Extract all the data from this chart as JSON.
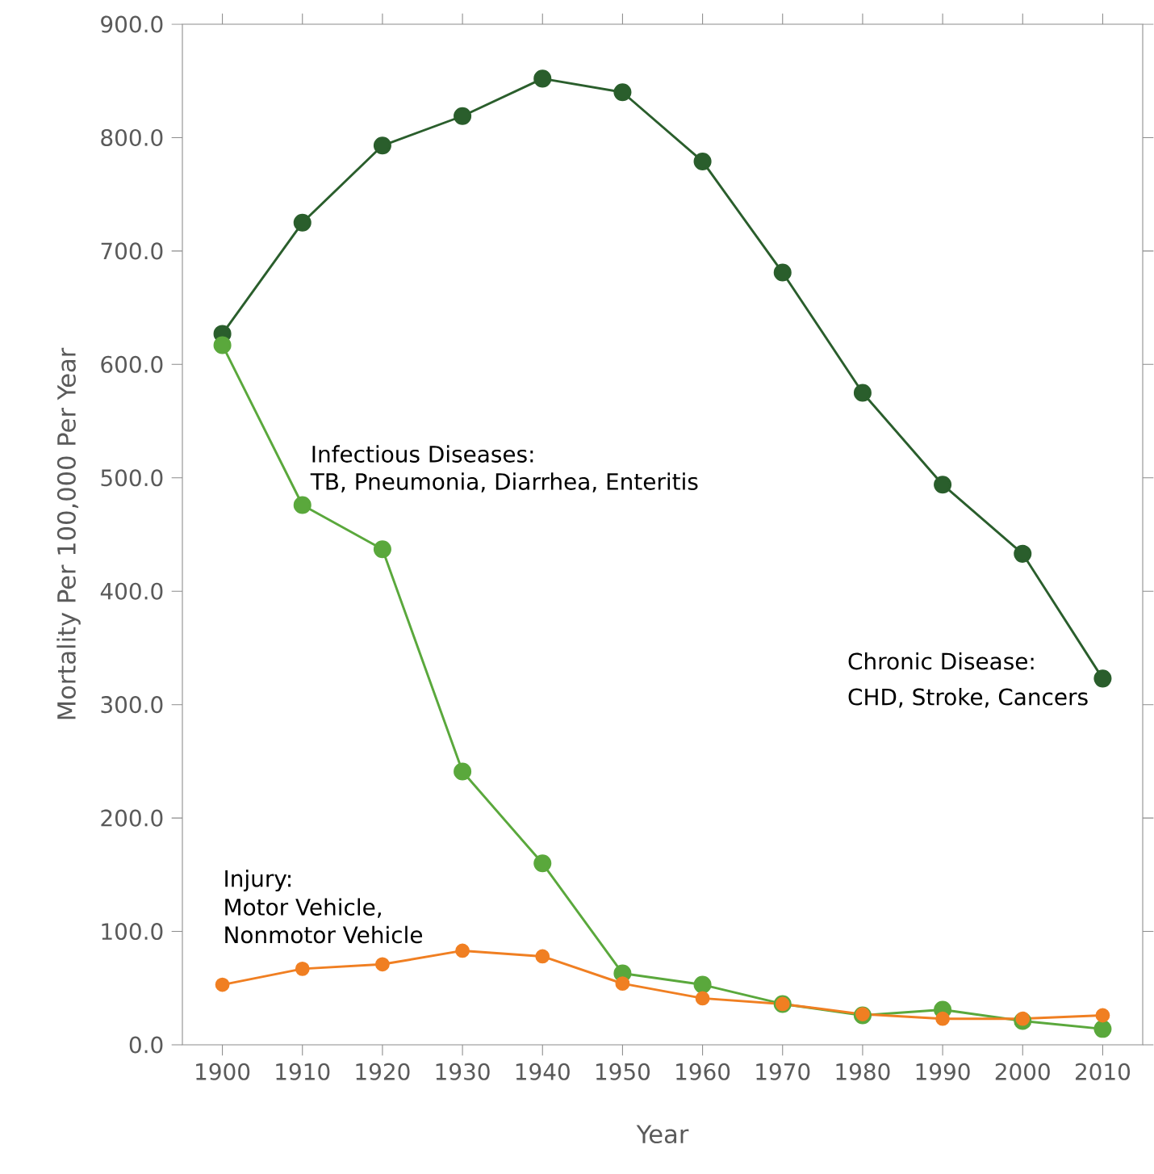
{
  "chart_data": {
    "type": "line",
    "xlabel": "Year",
    "ylabel": "Mortality Per 100,000 Per Year",
    "x": [
      1900,
      1910,
      1920,
      1930,
      1940,
      1950,
      1960,
      1970,
      1980,
      1990,
      2000,
      2010
    ],
    "series": [
      {
        "color": "#2a5e2c",
        "values": [
          627,
          725,
          793,
          819,
          852,
          840,
          779,
          681,
          575,
          494,
          433,
          323
        ]
      },
      {
        "color": "#5aa83c",
        "values": [
          617,
          476,
          437,
          241,
          160,
          63,
          53,
          36,
          26,
          31,
          21,
          14
        ]
      },
      {
        "color": "#f07f22",
        "values": [
          53,
          67,
          71,
          83,
          78,
          54,
          41,
          36,
          27,
          23,
          23,
          26
        ]
      }
    ],
    "xlim": [
      1895,
      2015
    ],
    "ylim": [
      0,
      900
    ],
    "xticks": [
      1900,
      1910,
      1920,
      1930,
      1940,
      1950,
      1960,
      1970,
      1980,
      1990,
      2000,
      2010
    ],
    "yticks": [
      {
        "value": 0,
        "label": "0.0"
      },
      {
        "value": 100,
        "label": "100.0"
      },
      {
        "value": 200,
        "label": "200.0"
      },
      {
        "value": 300,
        "label": "300.0"
      },
      {
        "value": 400,
        "label": "400.0"
      },
      {
        "value": 500,
        "label": "500.0"
      },
      {
        "value": 600,
        "label": "600.0"
      },
      {
        "value": 700,
        "label": "700.0"
      },
      {
        "value": 800,
        "label": "800.0"
      },
      {
        "value": 900,
        "label": "900.0"
      }
    ],
    "annotations": [
      "Infectious Diseases:",
      "TB, Pneumonia, Diarrhea, Enteritis",
      "Chronic Disease:",
      "CHD, Stroke, Cancers",
      "Injury:",
      "Motor Vehicle,",
      "Nonmotor Vehicle"
    ],
    "grid": false,
    "marker": "circle",
    "line_style": "solid"
  }
}
